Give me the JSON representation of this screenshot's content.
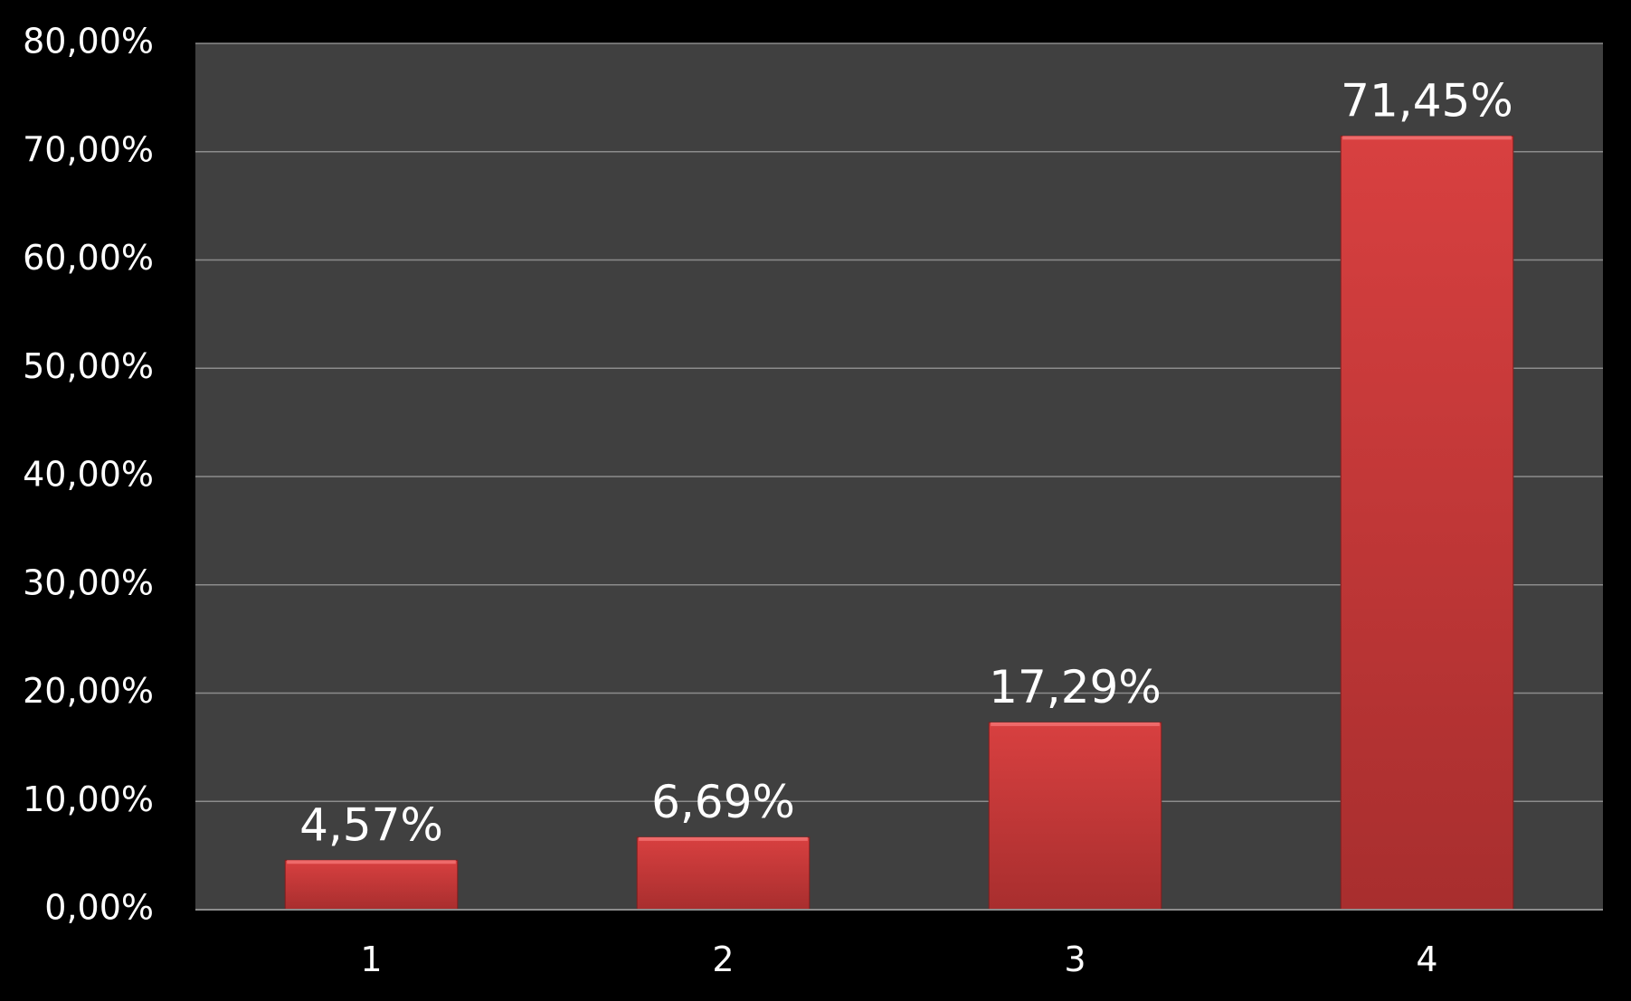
{
  "colors": {
    "background": "#000000",
    "plot_area": "#404040",
    "gridline": "#8c8c8c",
    "bar": "#d84040",
    "bar_dark": "#a82e2e",
    "text": "#ffffff"
  },
  "chart_data": {
    "type": "bar",
    "title": "",
    "xlabel": "",
    "ylabel": "",
    "categories": [
      "1",
      "2",
      "3",
      "4"
    ],
    "values": [
      4.57,
      6.69,
      17.29,
      71.45
    ],
    "data_labels": [
      "4,57%",
      "6,69%",
      "17,29%",
      "71,45%"
    ],
    "ylim": [
      0,
      80
    ],
    "yticks": [
      0,
      10,
      20,
      30,
      40,
      50,
      60,
      70,
      80
    ],
    "ytick_labels": [
      "0,00%",
      "10,00%",
      "20,00%",
      "30,00%",
      "40,00%",
      "50,00%",
      "60,00%",
      "70,00%",
      "80,00%"
    ],
    "grid": true,
    "legend": "none"
  }
}
